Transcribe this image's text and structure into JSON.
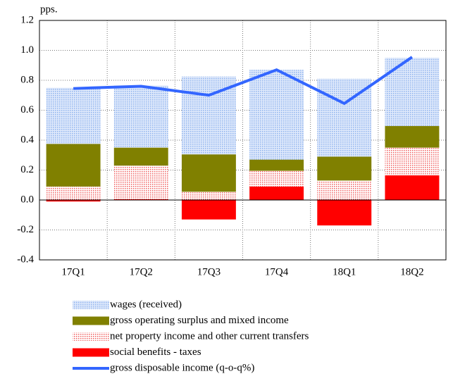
{
  "chart_data": {
    "type": "bar",
    "y_label": "pps.",
    "categories": [
      "17Q1",
      "17Q2",
      "17Q3",
      "17Q4",
      "18Q1",
      "18Q2"
    ],
    "series": [
      {
        "name": "wages (received)",
        "color": "#8fb3ee",
        "values": [
          0.375,
          0.415,
          0.52,
          0.6,
          0.52,
          0.455
        ]
      },
      {
        "name": "gross operating surplus and mixed income",
        "color": "#808000",
        "values": [
          0.285,
          0.12,
          0.25,
          0.075,
          0.16,
          0.145
        ]
      },
      {
        "name": "net property income and other current transfers",
        "color": "#f06060",
        "values": [
          0.09,
          0.225,
          0.055,
          0.105,
          0.13,
          0.185
        ]
      },
      {
        "name": "social benefits - taxes",
        "color": "#ff0000",
        "values": [
          -0.01,
          0.005,
          -0.13,
          0.09,
          -0.17,
          0.165
        ]
      },
      {
        "name": "gross disposable income (q-o-q%)",
        "color": "#3366ff",
        "type": "line",
        "values": [
          0.745,
          0.76,
          0.7,
          0.87,
          0.645,
          0.955
        ]
      }
    ],
    "legend_text_colors": [
      "#ff0000",
      "#ff0000",
      "#808000",
      "#ff0000",
      "#00a000"
    ],
    "ylim": [
      -0.4,
      1.2
    ],
    "yticks": [
      -0.4,
      -0.2,
      {
        "value": 0,
        "label": "0.0"
      },
      0.2,
      0.4,
      0.6,
      0.8,
      {
        "value": 1,
        "label": "1.0"
      },
      1.2
    ],
    "grid": true
  }
}
